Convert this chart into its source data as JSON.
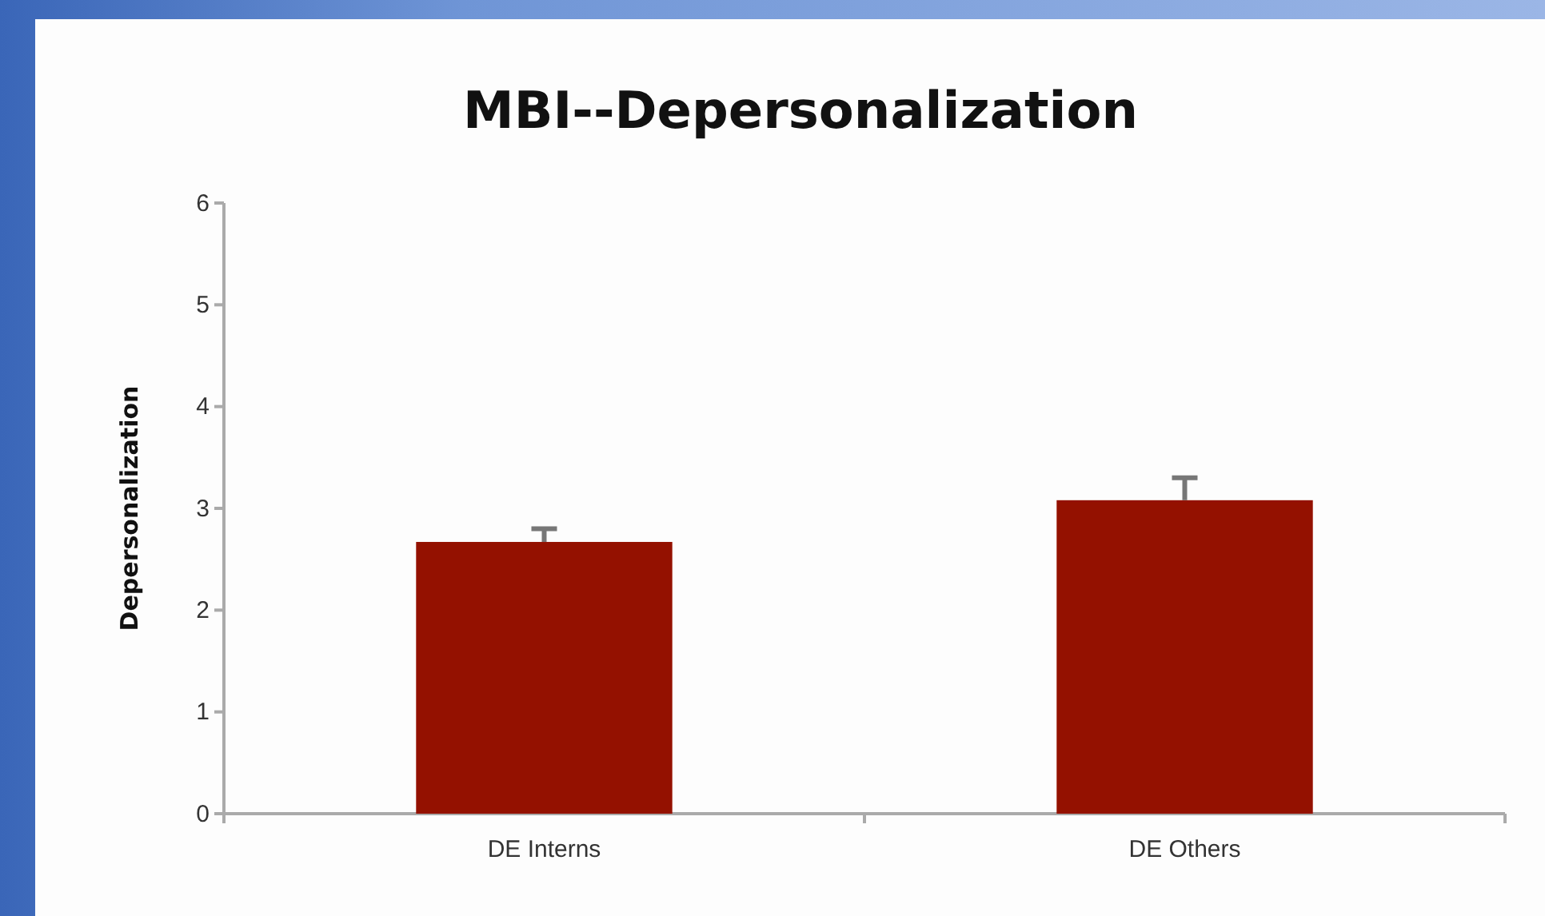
{
  "chart_data": {
    "type": "bar",
    "title": "MBI--Depersonalization",
    "ylabel": "Depersonalization",
    "categories": [
      "DE Interns",
      "DE Others"
    ],
    "values": [
      2.67,
      3.08
    ],
    "errors": [
      0.13,
      0.22
    ],
    "color": "#941100",
    "ylim": [
      0,
      6
    ],
    "yticks": [
      0,
      1,
      2,
      3,
      4,
      5,
      6
    ],
    "grid": false
  }
}
